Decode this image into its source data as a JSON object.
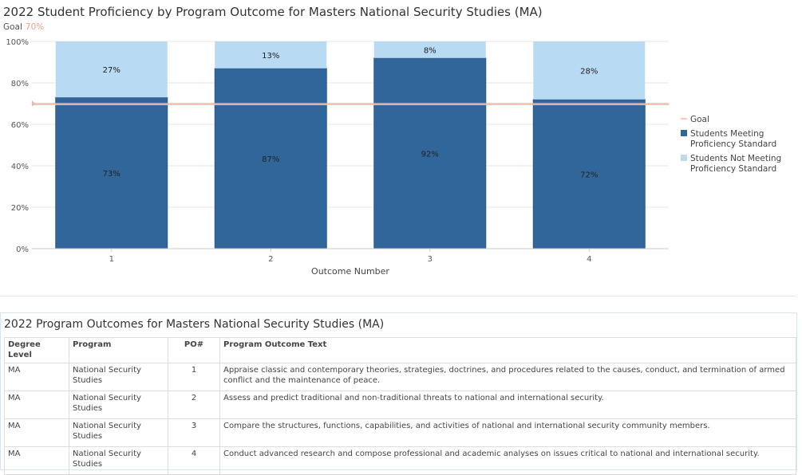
{
  "chart_data": {
    "type": "bar",
    "stacked": true,
    "title": "2022 Student Proficiency by Program Outcome for Masters National Security Studies (MA)",
    "goal_label": "Goal",
    "goal_value": 70,
    "goal_text": "70%",
    "xlabel": "Outcome Number",
    "ylabel": "",
    "categories": [
      "1",
      "2",
      "3",
      "4"
    ],
    "ylim": [
      0,
      100
    ],
    "yticks": [
      "0%",
      "20%",
      "40%",
      "60%",
      "80%",
      "100%"
    ],
    "series": [
      {
        "name": "Students Meeting Proficiency Standard",
        "color": "#31669a",
        "values": [
          73,
          87,
          92,
          72
        ],
        "labels": [
          "73%",
          "87%",
          "92%",
          "72%"
        ]
      },
      {
        "name": "Students Not Meeting Proficiency Standard",
        "color": "#b8daf3",
        "values": [
          27,
          13,
          8,
          28
        ],
        "labels": [
          "27%",
          "13%",
          "8%",
          "28%"
        ]
      }
    ],
    "goal_color": "#f4b5a2",
    "legend": {
      "placement": "right",
      "items": [
        "Goal",
        "Students Meeting Proficiency Standard",
        "Students Not Meeting Proficiency Standard"
      ]
    },
    "grid": true
  },
  "table": {
    "title": "2022 Program Outcomes for Masters National Security Studies (MA)",
    "headers": [
      "Degree Level",
      "Program",
      "PO#",
      "Program Outcome Text"
    ],
    "rows": [
      [
        "MA",
        "National Security Studies",
        "1",
        "Appraise classic and contemporary theories, strategies, doctrines, and procedures related to the causes, conduct, and termination of armed conflict and the maintenance of peace."
      ],
      [
        "MA",
        "National Security Studies",
        "2",
        "Assess and predict traditional and non-traditional threats to national and international security."
      ],
      [
        "MA",
        "National Security Studies",
        "3",
        "Compare the structures, functions, capabilities, and activities of national and international security community members."
      ],
      [
        "MA",
        "National Security Studies",
        "4",
        "Conduct advanced research and compose professional and academic analyses on issues critical to national and international security."
      ]
    ]
  }
}
